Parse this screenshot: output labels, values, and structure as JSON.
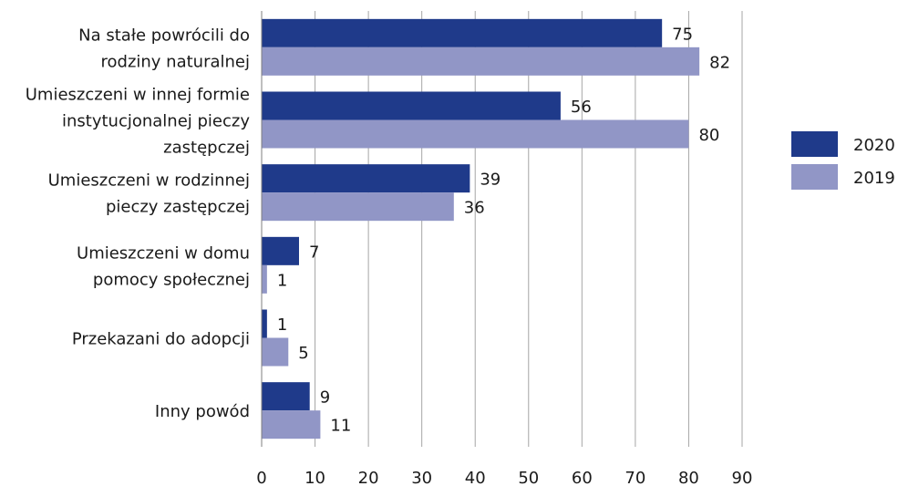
{
  "chart_data": {
    "type": "bar",
    "orientation": "horizontal",
    "categories": [
      [
        "Na stałe powrócili do",
        "rodziny naturalnej"
      ],
      [
        "Umieszczeni w innej formie",
        "instytucjonalnej pieczy",
        "zastępczej"
      ],
      [
        "Umieszczeni w rodzinnej",
        "pieczy zastępczej"
      ],
      [
        "Umieszczeni w domu",
        "pomocy społecznej"
      ],
      [
        "Przekazani do adopcji"
      ],
      [
        "Inny powód"
      ]
    ],
    "series": [
      {
        "name": "2020",
        "color": "#1f3a8a",
        "values": [
          75,
          56,
          39,
          7,
          1,
          9
        ]
      },
      {
        "name": "2019",
        "color": "#9196c6",
        "values": [
          82,
          80,
          36,
          1,
          5,
          11
        ]
      }
    ],
    "xlim": [
      0,
      90
    ],
    "xticks": [
      0,
      10,
      20,
      30,
      40,
      50,
      60,
      70,
      80,
      90
    ],
    "grid": "vertical",
    "legend": "right"
  }
}
